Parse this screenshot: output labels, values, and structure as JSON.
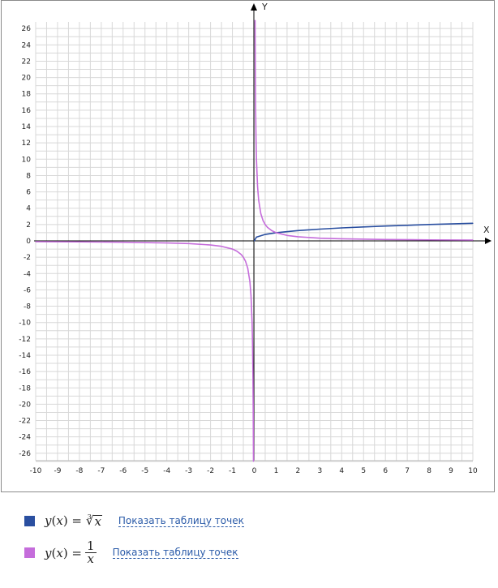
{
  "chart_data": {
    "type": "line",
    "x_axis_label": "X",
    "y_axis_label": "Y",
    "xlim": [
      -10,
      10
    ],
    "ylim": [
      -27,
      27
    ],
    "x_ticks": [
      -10,
      -9,
      -8,
      -7,
      -6,
      -5,
      -4,
      -3,
      -2,
      -1,
      0,
      1,
      2,
      3,
      4,
      5,
      6,
      7,
      8,
      9,
      10
    ],
    "y_ticks": [
      -26,
      -24,
      -22,
      -20,
      -18,
      -16,
      -14,
      -12,
      -10,
      -8,
      -6,
      -4,
      -2,
      0,
      2,
      4,
      6,
      8,
      10,
      12,
      14,
      16,
      18,
      20,
      22,
      24,
      26
    ],
    "grid": true,
    "series": [
      {
        "formula": "cbrt(x)",
        "color": "#2a4fa0",
        "x": [
          0,
          0.1,
          0.5,
          1,
          2,
          3,
          4,
          5,
          6,
          7,
          8,
          9,
          10
        ],
        "y": [
          0,
          0.46,
          0.79,
          1,
          1.26,
          1.44,
          1.59,
          1.71,
          1.82,
          1.91,
          2,
          2.08,
          2.15
        ]
      },
      {
        "formula": "1/x",
        "color": "#c56ddb",
        "x": [
          -10,
          -8,
          -6,
          -4,
          -3,
          -2,
          -1.5,
          -1,
          -0.8,
          -0.6,
          -0.5,
          -0.4,
          -0.3,
          -0.2,
          -0.15,
          -0.1,
          -0.08,
          -0.06,
          -0.05,
          -0.04,
          -0.037
        ],
        "y": [
          -0.1,
          -0.125,
          -0.167,
          -0.25,
          -0.333,
          -0.5,
          -0.667,
          -1,
          -1.25,
          -1.667,
          -2,
          -2.5,
          -3.333,
          -5,
          -6.667,
          -10,
          -12.5,
          -16.667,
          -20,
          -25,
          -27
        ]
      },
      {
        "formula": "1/x",
        "color": "#c56ddb",
        "x": [
          0.037,
          0.04,
          0.05,
          0.06,
          0.08,
          0.1,
          0.15,
          0.2,
          0.3,
          0.4,
          0.5,
          0.6,
          0.8,
          1,
          1.5,
          2,
          3,
          4,
          6,
          8,
          10
        ],
        "y": [
          27,
          25,
          20,
          16.667,
          12.5,
          10,
          6.667,
          5,
          3.333,
          2.5,
          2,
          1.667,
          1.25,
          1,
          0.667,
          0.5,
          0.333,
          0.25,
          0.167,
          0.125,
          0.1
        ]
      }
    ]
  },
  "legend": [
    {
      "color": "#2a4fa0",
      "link": "Показать таблицу точек"
    },
    {
      "color": "#c56ddb",
      "link": "Показать таблицу точек"
    }
  ]
}
